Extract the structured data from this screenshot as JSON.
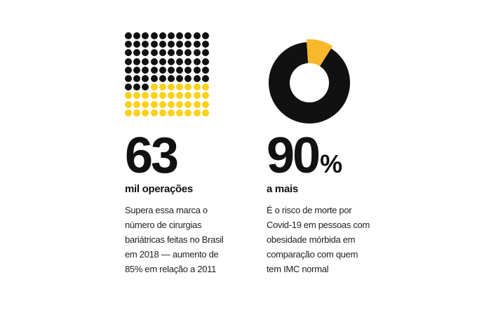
{
  "colors": {
    "black": "#111111",
    "yellow": "#fcd116",
    "donut_accent": "#f9b72b"
  },
  "stat_operations": {
    "number": "63",
    "subtitle": "mil operações",
    "description_lines": [
      "Supera essa marca o",
      "número de cirurgias",
      "bariátricas feitas no Brasil",
      "em 2018 — aumento de",
      "85% em relação a 2011"
    ],
    "dot_grid": {
      "rows": 10,
      "cols": 10,
      "black_dots": 63,
      "yellow_dots": 37
    }
  },
  "stat_risk": {
    "number": "90",
    "unit": "%",
    "subtitle": "a mais",
    "description_lines": [
      "É o risco de morte por",
      "Covid-19 em pessoas com",
      "obesidade mórbida em",
      "comparação com quem",
      "tem IMC normal"
    ],
    "donut": {
      "highlight_fraction": 0.1
    }
  }
}
